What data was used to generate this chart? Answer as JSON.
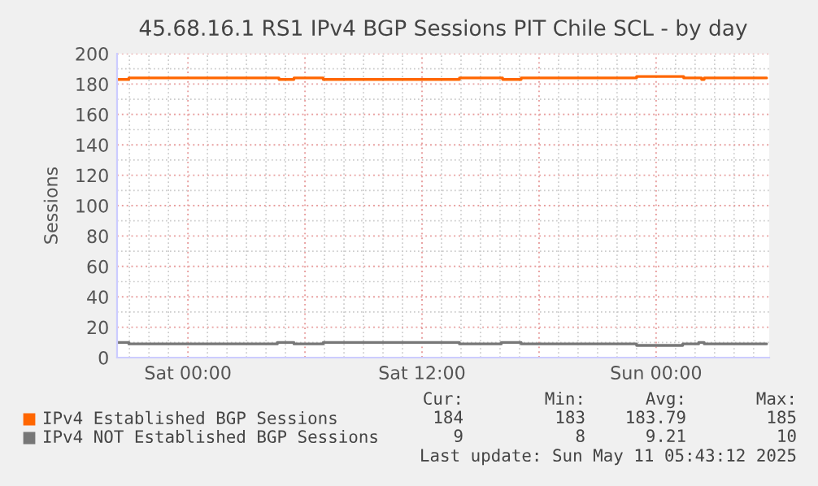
{
  "chart_data": {
    "type": "step",
    "title": "45.68.16.1 RS1 IPv4 BGP Sessions PIT Chile SCL - by day",
    "ylabel": "Sessions",
    "xlim": [
      "2025-05-09T20:22",
      "2025-05-11T05:48"
    ],
    "ylim": [
      0,
      200
    ],
    "xticks": [
      {
        "value": "2025-05-10T00:00",
        "label": "Sat 00:00"
      },
      {
        "value": "2025-05-10T06:00",
        "label": null
      },
      {
        "value": "2025-05-10T12:00",
        "label": "Sat 12:00"
      },
      {
        "value": "2025-05-10T18:00",
        "label": null
      },
      {
        "value": "2025-05-11T00:00",
        "label": "Sun 00:00"
      }
    ],
    "yticks": [
      0,
      20,
      40,
      60,
      80,
      100,
      120,
      140,
      160,
      180,
      200
    ],
    "grid": true,
    "legend": "bottom",
    "series": [
      {
        "name": "IPv4 Established BGP Sessions",
        "color": "#ff6600",
        "x": [
          "2025-05-09T20:23",
          "2025-05-09T20:58",
          "2025-05-10T04:40",
          "2025-05-10T05:26",
          "2025-05-10T06:56",
          "2025-05-10T13:55",
          "2025-05-10T16:08",
          "2025-05-10T17:05",
          "2025-05-10T23:00",
          "2025-05-11T01:25",
          "2025-05-11T02:20",
          "2025-05-11T02:28",
          "2025-05-11T05:40"
        ],
        "values": [
          183,
          184,
          183,
          184,
          183,
          184,
          183,
          184,
          185,
          184,
          183,
          184,
          184
        ]
      },
      {
        "name": "IPv4 NOT Established BGP Sessions",
        "color": "#777777",
        "x": [
          "2025-05-09T20:23",
          "2025-05-09T20:58",
          "2025-05-10T04:35",
          "2025-05-10T05:26",
          "2025-05-10T06:56",
          "2025-05-10T13:55",
          "2025-05-10T16:04",
          "2025-05-10T17:05",
          "2025-05-10T23:00",
          "2025-05-11T01:22",
          "2025-05-11T02:11",
          "2025-05-11T02:28",
          "2025-05-11T05:40"
        ],
        "values": [
          10,
          9,
          10,
          9,
          10,
          9,
          10,
          9,
          8,
          9,
          10,
          9,
          9
        ]
      }
    ],
    "annotations": [
      "Cur:",
      "Min:",
      "Avg:",
      "Max:",
      "184",
      "183",
      "183.79",
      "185",
      "9",
      "8",
      "9.21",
      "10",
      "Last update: Sun May 11 05:43:12 2025"
    ]
  }
}
